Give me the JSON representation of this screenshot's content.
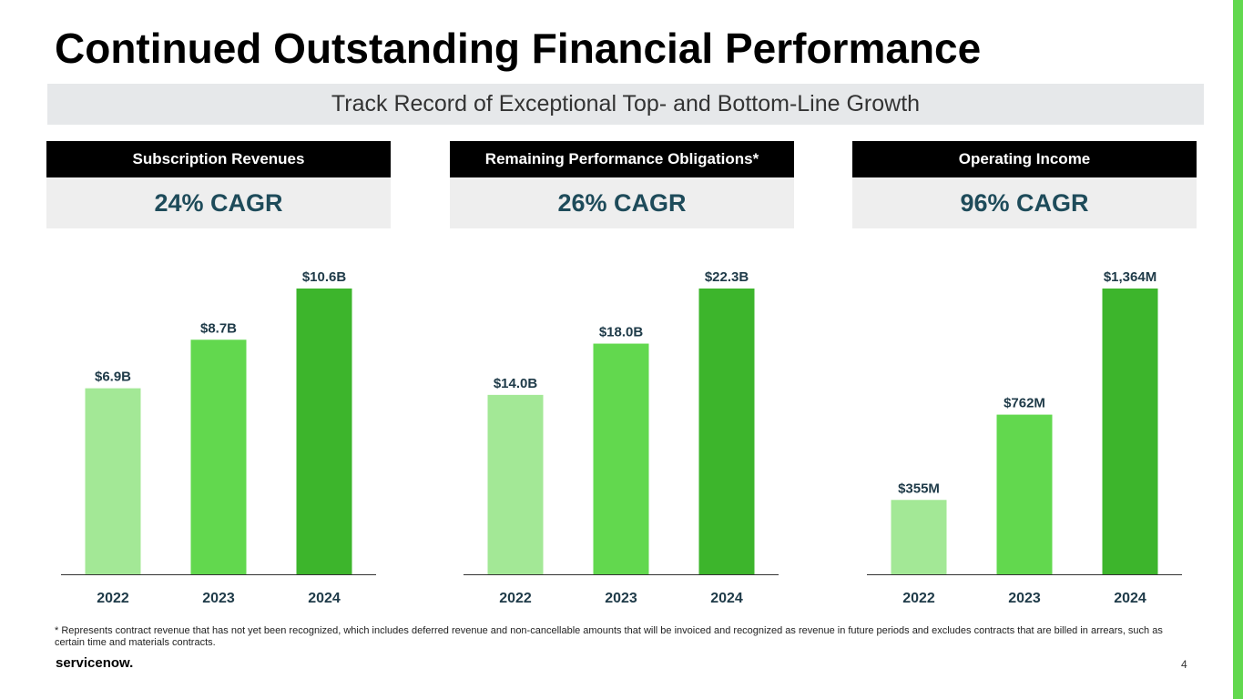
{
  "slide": {
    "title": "Continued Outstanding Financial Performance",
    "subtitle": "Track Record of Exceptional Top- and Bottom-Line Growth",
    "footnote": "* Represents contract revenue that has not yet been recognized, which includes deferred revenue and non-cancellable amounts that will be invoiced and recognized as revenue in future periods and excludes contracts that are billed in arrears, such as certain time and materials contracts.",
    "logo_text": "servicenow.",
    "page_number": "4"
  },
  "panels": [
    {
      "header": "Subscription Revenues",
      "cagr": "24% CAGR"
    },
    {
      "header": "Remaining Performance Obligations*",
      "cagr": "26% CAGR"
    },
    {
      "header": "Operating Income",
      "cagr": "96% CAGR"
    }
  ],
  "colors": {
    "bar_2022": "#a3e896",
    "bar_2023": "#62d84e",
    "bar_2024": "#3db52c",
    "accent": "#62d84e",
    "cagr_text": "#1e4b5a"
  },
  "chart_data": [
    {
      "type": "bar",
      "title": "Subscription Revenues",
      "categories": [
        "2022",
        "2023",
        "2024"
      ],
      "values": [
        6.9,
        8.7,
        10.6
      ],
      "labels": [
        "$6.9B",
        "$8.7B",
        "$10.6B"
      ],
      "unit": "B",
      "ylim": [
        0,
        10.6
      ]
    },
    {
      "type": "bar",
      "title": "Remaining Performance Obligations*",
      "categories": [
        "2022",
        "2023",
        "2024"
      ],
      "values": [
        14.0,
        18.0,
        22.3
      ],
      "labels": [
        "$14.0B",
        "$18.0B",
        "$22.3B"
      ],
      "unit": "B",
      "ylim": [
        0,
        22.3
      ]
    },
    {
      "type": "bar",
      "title": "Operating Income",
      "categories": [
        "2022",
        "2023",
        "2024"
      ],
      "values": [
        355,
        762,
        1364
      ],
      "labels": [
        "$355M",
        "$762M",
        "$1,364M"
      ],
      "unit": "M",
      "ylim": [
        0,
        1364
      ]
    }
  ]
}
